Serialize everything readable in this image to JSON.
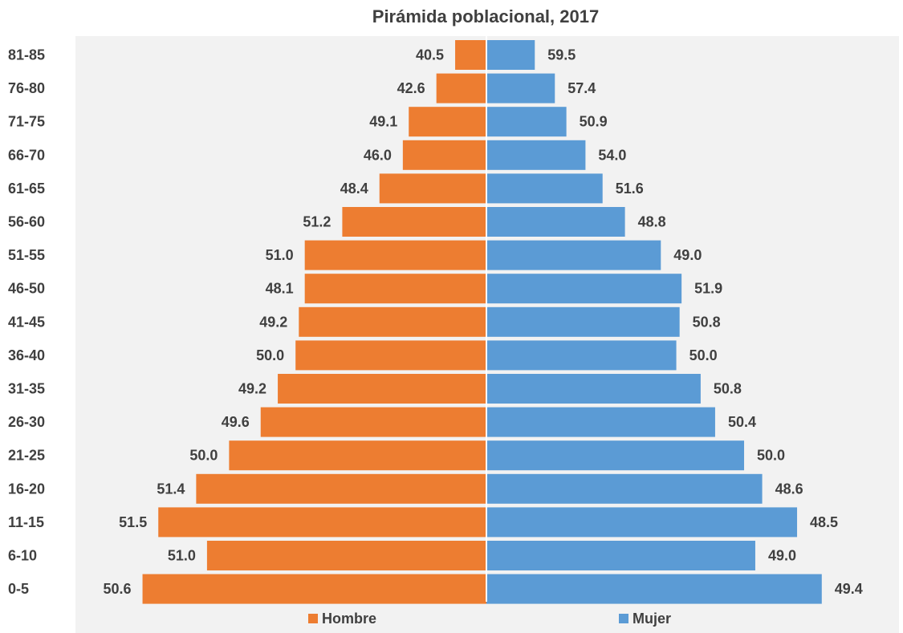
{
  "chart_data": {
    "type": "bar",
    "orientation": "horizontal-pyramid",
    "title": "Pirámida poblacional, 2017",
    "categories": [
      "81-85",
      "76-80",
      "71-75",
      "66-70",
      "61-65",
      "56-60",
      "51-55",
      "46-50",
      "41-45",
      "36-40",
      "31-35",
      "26-30",
      "21-25",
      "16-20",
      "11-15",
      "6-10",
      "0-5"
    ],
    "series": [
      {
        "name": "Hombre",
        "color": "#ED7D31",
        "values": [
          40.5,
          42.6,
          49.1,
          46.0,
          48.4,
          51.2,
          51.0,
          48.1,
          49.2,
          50.0,
          49.2,
          49.6,
          50.0,
          51.4,
          51.5,
          51.0,
          50.6
        ],
        "labels": [
          "40.5",
          "42.6",
          "49.1",
          "46.0",
          "48.4",
          "51.2",
          "51.0",
          "48.1",
          "49.2",
          "50.0",
          "49.2",
          "49.6",
          "50.0",
          "51.4",
          "51.5",
          "51.0",
          "50.6"
        ],
        "relative_length": [
          0.095,
          0.152,
          0.236,
          0.254,
          0.325,
          0.438,
          0.552,
          0.552,
          0.57,
          0.58,
          0.634,
          0.686,
          0.782,
          0.882,
          0.997,
          0.849,
          1.045
        ]
      },
      {
        "name": "Mujer",
        "color": "#5B9BD5",
        "values": [
          59.5,
          57.4,
          50.9,
          54.0,
          51.6,
          48.8,
          49.0,
          51.9,
          50.8,
          50.0,
          50.8,
          50.4,
          50.0,
          48.6,
          48.5,
          49.0,
          49.4
        ],
        "labels": [
          "59.5",
          "57.4",
          "50.9",
          "54.0",
          "51.6",
          "48.8",
          "49.0",
          "51.9",
          "50.8",
          "50.0",
          "50.8",
          "50.4",
          "50.0",
          "48.6",
          "48.5",
          "49.0",
          "49.4"
        ],
        "relative_length": [
          0.147,
          0.208,
          0.243,
          0.301,
          0.353,
          0.421,
          0.53,
          0.593,
          0.587,
          0.577,
          0.651,
          0.695,
          0.783,
          0.838,
          0.944,
          0.817,
          1.019
        ]
      }
    ],
    "legend": {
      "position": "bottom",
      "items": [
        "Hombre",
        "Mujer"
      ]
    },
    "grid": false,
    "background": "#F2F2F2"
  }
}
